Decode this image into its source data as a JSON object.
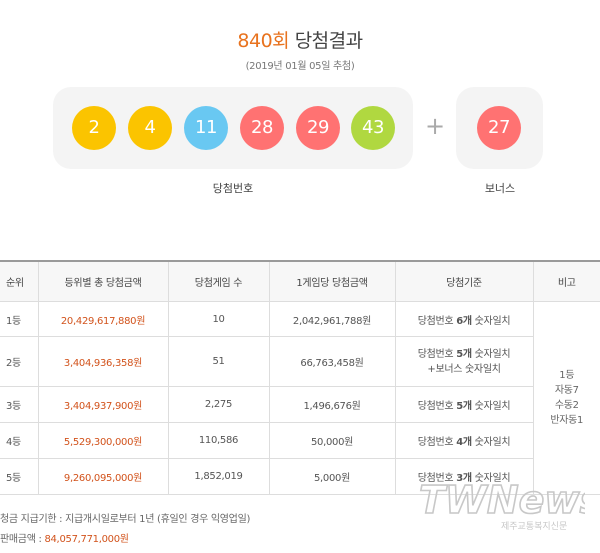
{
  "header": {
    "round": "840회",
    "title": "당첨결과",
    "date": "(2019년 01월 05일 추첨)"
  },
  "winning_numbers": {
    "caption": "당첨번호",
    "balls": [
      {
        "value": "2",
        "color": "#fbc400"
      },
      {
        "value": "4",
        "color": "#fbc400"
      },
      {
        "value": "11",
        "color": "#69c8f2"
      },
      {
        "value": "28",
        "color": "#ff7272"
      },
      {
        "value": "29",
        "color": "#ff7272"
      },
      {
        "value": "43",
        "color": "#b0d840"
      }
    ]
  },
  "plus": "+",
  "bonus": {
    "caption": "보너스",
    "value": "27",
    "color": "#ff7272"
  },
  "table": {
    "headers": [
      "순위",
      "등위별 총 당첨금액",
      "당첨게임 수",
      "1게임당 당첨금액",
      "당첨기준",
      "비고"
    ],
    "rows": [
      {
        "rank": "1등",
        "total": "20,429,617,880원",
        "games": "10",
        "per_game": "2,042,961,788원",
        "criteria": [
          "당첨번호 ",
          "6개",
          " 숫자일치"
        ],
        "criteria2": ""
      },
      {
        "rank": "2등",
        "total": "3,404,936,358원",
        "games": "51",
        "per_game": "66,763,458원",
        "criteria": [
          "당첨번호 ",
          "5개",
          " 숫자일치"
        ],
        "criteria2": "+보너스 숫자일치"
      },
      {
        "rank": "3등",
        "total": "3,404,937,900원",
        "games": "2,275",
        "per_game": "1,496,676원",
        "criteria": [
          "당첨번호 ",
          "5개",
          " 숫자일치"
        ],
        "criteria2": ""
      },
      {
        "rank": "4등",
        "total": "5,529,300,000원",
        "games": "110,586",
        "per_game": "50,000원",
        "criteria": [
          "당첨번호 ",
          "4개",
          " 숫자일치"
        ],
        "criteria2": ""
      },
      {
        "rank": "5등",
        "total": "9,260,095,000원",
        "games": "1,852,019",
        "per_game": "5,000원",
        "criteria": [
          "당첨번호 ",
          "3개",
          " 숫자일치"
        ],
        "criteria2": ""
      }
    ],
    "remark_lines": [
      "1등",
      "자동7",
      "수동2",
      "반자동1"
    ]
  },
  "footer": {
    "deadline": "청금 지급기한 : 지급개시일로부터 1년 (휴일인 경우 익영업일)",
    "sales_label": "판매금액 : ",
    "sales_value": "84,057,771,000원"
  },
  "watermark": {
    "logo": "TWNews",
    "tagline": "제주교통복지신문"
  }
}
